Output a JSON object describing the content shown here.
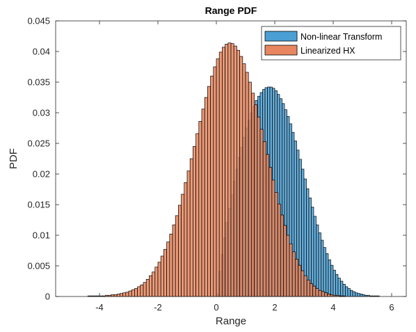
{
  "chart_data": {
    "type": "bar",
    "subtype": "histogram",
    "title": "Range PDF",
    "xlabel": "Range",
    "ylabel": "PDF",
    "xlim": [
      -5.5,
      6.5
    ],
    "ylim": [
      0,
      0.045
    ],
    "xticks": [
      -4,
      -2,
      0,
      2,
      4,
      6
    ],
    "xtick_labels": [
      "-4",
      "-2",
      "0",
      "2",
      "4",
      "6"
    ],
    "yticks": [
      0,
      0.005,
      0.01,
      0.015,
      0.02,
      0.025,
      0.03,
      0.035,
      0.04,
      0.045
    ],
    "ytick_labels": [
      "0",
      "0.005",
      "0.01",
      "0.015",
      "0.02",
      "0.025",
      "0.03",
      "0.035",
      "0.04",
      "0.045"
    ],
    "grid": false,
    "legend_position": "top-right",
    "series": [
      {
        "name": "Non-linear Transform",
        "color": "#4a9fd4",
        "bin_start": 0.0,
        "bin_width": 0.0833,
        "values": [
          0.0004,
          0.0041,
          0.0069,
          0.0096,
          0.0121,
          0.0144,
          0.0166,
          0.0188,
          0.0208,
          0.0227,
          0.0244,
          0.026,
          0.0275,
          0.0288,
          0.03,
          0.0311,
          0.032,
          0.0327,
          0.0333,
          0.0338,
          0.0341,
          0.0342,
          0.0342,
          0.034,
          0.0336,
          0.033,
          0.0323,
          0.0315,
          0.0305,
          0.0294,
          0.0282,
          0.0268,
          0.0254,
          0.0239,
          0.0224,
          0.0208,
          0.0192,
          0.0176,
          0.0161,
          0.0146,
          0.0131,
          0.0117,
          0.0104,
          0.0092,
          0.008,
          0.007,
          0.006,
          0.0051,
          0.0043,
          0.0036,
          0.003,
          0.0025,
          0.002,
          0.0016,
          0.0013,
          0.001,
          0.0008,
          0.0006,
          0.0005,
          0.0004,
          0.0003,
          0.0002,
          0.0002,
          0.0001,
          0.0001,
          0.0001,
          0.0001,
          0.0,
          0.0,
          0.0
        ]
      },
      {
        "name": "Linearized HX",
        "color": "#e8875f",
        "bin_start": -4.4,
        "bin_width": 0.1,
        "values": [
          0.0001,
          0.0001,
          0.0001,
          0.0001,
          0.0001,
          0.0001,
          0.0002,
          0.0002,
          0.0003,
          0.0003,
          0.0004,
          0.0005,
          0.0006,
          0.0007,
          0.0009,
          0.0011,
          0.0013,
          0.0016,
          0.0019,
          0.0023,
          0.0028,
          0.0034,
          0.004,
          0.0048,
          0.0056,
          0.0066,
          0.0077,
          0.0089,
          0.0102,
          0.0117,
          0.0132,
          0.0149,
          0.0167,
          0.0186,
          0.0205,
          0.0225,
          0.0245,
          0.0266,
          0.0286,
          0.0306,
          0.0325,
          0.0343,
          0.036,
          0.0375,
          0.0388,
          0.0399,
          0.0407,
          0.0412,
          0.0414,
          0.0413,
          0.0409,
          0.0402,
          0.0392,
          0.038,
          0.0366,
          0.035,
          0.0332,
          0.0313,
          0.0293,
          0.0273,
          0.0253,
          0.0232,
          0.0211,
          0.019,
          0.017,
          0.0151,
          0.0133,
          0.0116,
          0.01,
          0.0086,
          0.0073,
          0.0061,
          0.0051,
          0.0042,
          0.0034,
          0.0027,
          0.0021,
          0.0017,
          0.0013,
          0.001,
          0.0008,
          0.0006,
          0.0004,
          0.0003,
          0.0002,
          0.0002,
          0.0001,
          0.0001
        ]
      }
    ]
  }
}
